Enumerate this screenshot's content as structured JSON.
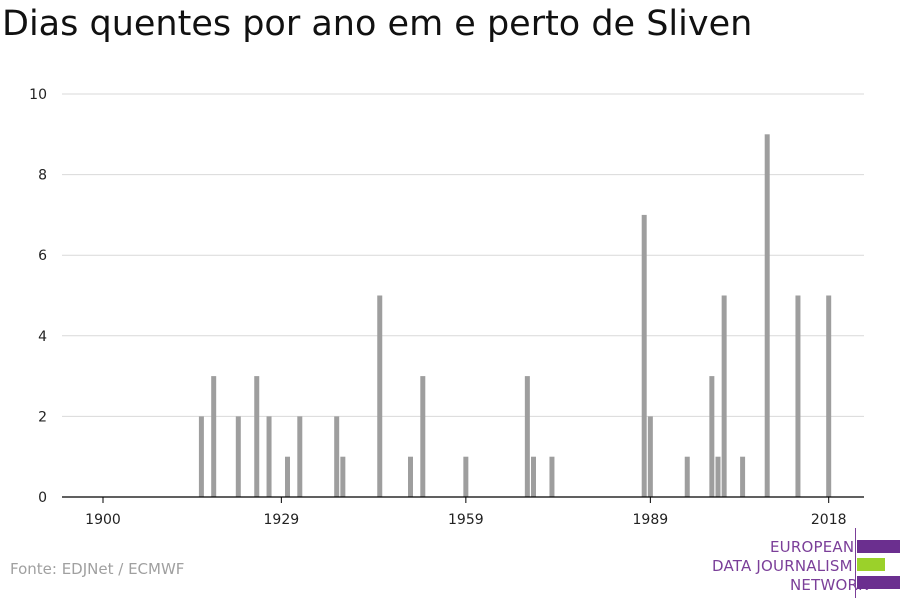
{
  "title": "Dias quentes por ano em e perto de Sliven",
  "source": "Fonte: EDJNet / ECMWF",
  "logo": {
    "line1": "EUROPEAN",
    "line2": "DATA JOURNALISM",
    "line3": "NETWORK",
    "colors": {
      "purple": "#6b2f8f",
      "green": "#9bd12a"
    }
  },
  "colors": {
    "bar": "#9e9e9e",
    "grid": "#d9d9d9",
    "axis": "#000000"
  },
  "chart_data": {
    "type": "bar",
    "xlim": [
      1900,
      2020
    ],
    "ylim": [
      0,
      10
    ],
    "x_ticks": [
      1900,
      1929,
      1959,
      1989,
      2018
    ],
    "y_ticks": [
      0,
      2,
      4,
      6,
      8,
      10
    ],
    "grid": true,
    "points": [
      {
        "x": 1916,
        "y": 2
      },
      {
        "x": 1918,
        "y": 3
      },
      {
        "x": 1922,
        "y": 2
      },
      {
        "x": 1925,
        "y": 3
      },
      {
        "x": 1927,
        "y": 2
      },
      {
        "x": 1930,
        "y": 1
      },
      {
        "x": 1932,
        "y": 2
      },
      {
        "x": 1938,
        "y": 2
      },
      {
        "x": 1939,
        "y": 1
      },
      {
        "x": 1945,
        "y": 5
      },
      {
        "x": 1950,
        "y": 1
      },
      {
        "x": 1952,
        "y": 3
      },
      {
        "x": 1959,
        "y": 1
      },
      {
        "x": 1969,
        "y": 3
      },
      {
        "x": 1970,
        "y": 1
      },
      {
        "x": 1973,
        "y": 1
      },
      {
        "x": 1988,
        "y": 7
      },
      {
        "x": 1989,
        "y": 2
      },
      {
        "x": 1995,
        "y": 1
      },
      {
        "x": 1999,
        "y": 3
      },
      {
        "x": 2000,
        "y": 1
      },
      {
        "x": 2001,
        "y": 5
      },
      {
        "x": 2004,
        "y": 1
      },
      {
        "x": 2008,
        "y": 9
      },
      {
        "x": 2013,
        "y": 5
      },
      {
        "x": 2018,
        "y": 5
      }
    ]
  }
}
